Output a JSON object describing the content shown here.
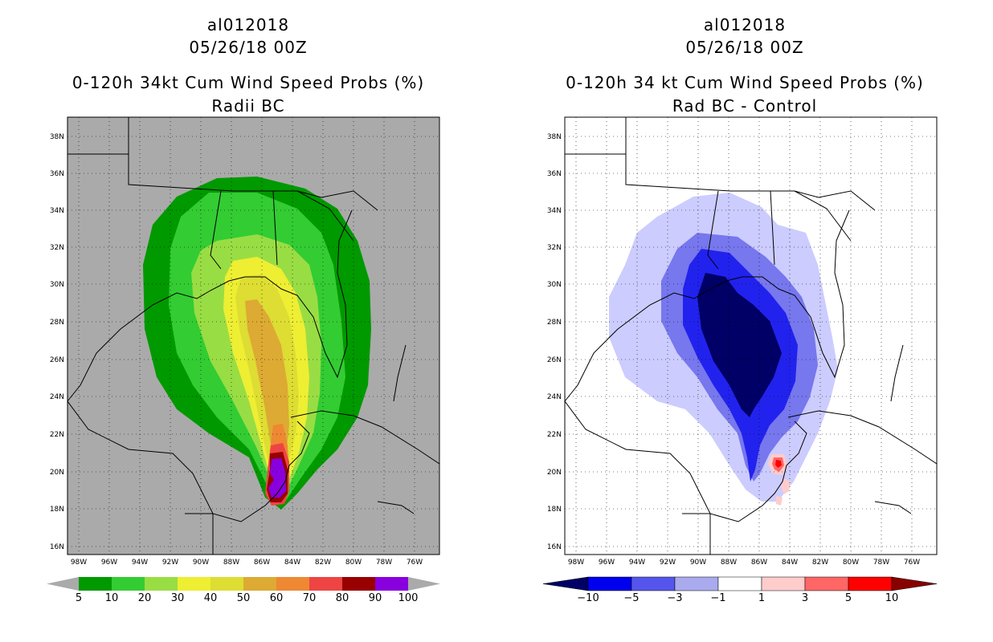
{
  "left": {
    "title_line1": "al012018",
    "title_line2": "05/26/18 00Z",
    "title_line3": "0-120h 34kt Cum Wind Speed Probs (%)",
    "title_line4": "Radii BC",
    "map_background": "#aaaaaa",
    "colorbar": {
      "labels": [
        "5",
        "10",
        "20",
        "30",
        "40",
        "50",
        "60",
        "70",
        "80",
        "90",
        "100"
      ],
      "colors": [
        "#009900",
        "#33cc33",
        "#99dd44",
        "#eeee33",
        "#dddd33",
        "#ddaa33",
        "#ee8833",
        "#ee4444",
        "#990000",
        "#8800dd"
      ],
      "arrow_color": "#aaaaaa"
    }
  },
  "right": {
    "title_line1": "al012018",
    "title_line2": "05/26/18 00Z",
    "title_line3": "0-120h 34 kt Cum Wind Speed Probs (%)",
    "title_line4": "Rad BC - Control",
    "map_background": "#ffffff",
    "colorbar": {
      "labels": [
        "-10",
        "-5",
        "-3",
        "-1",
        "1",
        "3",
        "5",
        "10"
      ],
      "colors": [
        "#0000ee",
        "#5555ee",
        "#aaaaee",
        "#ffffff",
        "#ffcccc",
        "#ff6666",
        "#ff0000"
      ],
      "arrow_low_color": "#000066",
      "arrow_high_color": "#880000"
    }
  },
  "axes": {
    "lat_labels": [
      "38N",
      "36N",
      "34N",
      "32N",
      "30N",
      "28N",
      "26N",
      "24N",
      "22N",
      "20N",
      "18N",
      "16N"
    ],
    "lon_labels": [
      "98W",
      "96W",
      "94W",
      "92W",
      "90W",
      "88W",
      "86W",
      "84W",
      "82W",
      "80W",
      "78W",
      "76W"
    ]
  }
}
